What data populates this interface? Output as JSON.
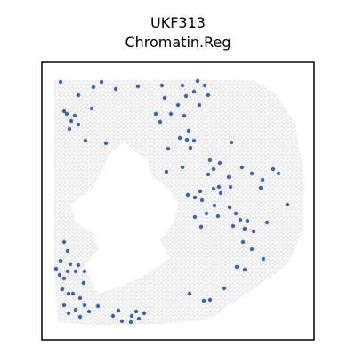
{
  "chart_data": {
    "type": "scatter",
    "title": "UKF313",
    "subtitle": "Chromatin.Reg",
    "xlim": [
      47,
      353
    ],
    "ylim": [
      382,
      70
    ],
    "series": [
      {
        "color": "#3a65ad",
        "x": [
          68,
          88,
          105,
          114,
          130,
          155,
          182,
          205,
          209,
          222,
          230,
          234,
          218,
          224,
          185,
          200,
          192,
          175,
          180,
          207,
          212,
          202,
          210,
          218,
          214,
          189,
          187,
          205,
          211,
          219,
          225,
          227,
          240,
          246,
          248,
          234,
          240,
          247,
          236,
          257,
          259,
          272,
          283,
          295,
          293,
          307,
          313,
          323,
          219,
          226,
          232,
          245,
          241,
          258,
          265,
          270,
          262,
          278,
          275,
          285,
          300,
          273,
          283,
          296,
          266,
          275,
          252,
          229,
          236,
          213,
          72,
          75,
          84,
          80,
          78,
          96,
          88,
          72,
          76,
          68,
          63,
          67,
          72,
          76,
          79,
          85,
          88,
          95,
          94,
          70,
          77,
          82,
          90,
          72,
          77,
          85,
          95,
          100,
          110,
          90,
          127,
          133,
          137,
          148,
          153,
          156,
          162,
          147,
          103,
          119,
          260
        ],
        "y": [
          92,
          107,
          98,
          92,
          100,
          97,
          96,
          96,
          108,
          91,
          96,
          107,
          103,
          118,
          110,
          118,
          128,
          128,
          137,
          130,
          147,
          155,
          157,
          158,
          166,
          167,
          193,
          188,
          219,
          222,
          215,
          225,
          212,
          210,
          217,
          196,
          190,
          183,
          180,
          199,
          210,
          188,
          195,
          202,
          211,
          190,
          195,
          230,
          244,
          255,
          240,
          243,
          231,
          233,
          240,
          247,
          254,
          248,
          257,
          260,
          250,
          272,
          280,
          291,
          300,
          303,
          324,
          338,
          337,
          330,
          125,
          128,
          130,
          136,
          145,
          158,
          140,
          272,
          282,
          293,
          302,
          309,
          313,
          305,
          297,
          305,
          298,
          305,
          318,
          325,
          330,
          330,
          335,
          343,
          352,
          348,
          343,
          350,
          344,
          356,
          355,
          349,
          361,
          355,
          350,
          358,
          352,
          362,
          122,
          161,
          160
        ]
      }
    ]
  }
}
